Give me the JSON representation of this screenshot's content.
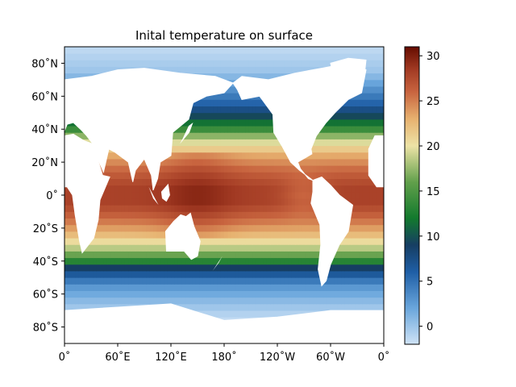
{
  "chart_data": {
    "type": "heatmap",
    "title": "Inital temperature on surface",
    "xlabel": "",
    "ylabel": "",
    "x_ticks": [
      "0˚",
      "60˚E",
      "120˚E",
      "180˚",
      "120˚W",
      "60˚W",
      "0˚"
    ],
    "y_ticks": [
      "80˚N",
      "60˚N",
      "40˚N",
      "20˚N",
      "0˚",
      "20˚S",
      "40˚S",
      "60˚S",
      "80˚S"
    ],
    "xlim": [
      0,
      360
    ],
    "ylim": [
      -90,
      90
    ],
    "colorbar": {
      "ticks": [
        0,
        5,
        10,
        15,
        20,
        25,
        30
      ],
      "range": [
        -2,
        31
      ],
      "stops": [
        {
          "v": -2,
          "color": "#cfe3f6"
        },
        {
          "v": 2,
          "color": "#6aa6dc"
        },
        {
          "v": 6,
          "color": "#1f5fa6"
        },
        {
          "v": 9,
          "color": "#163e63"
        },
        {
          "v": 12,
          "color": "#137a2d"
        },
        {
          "v": 16,
          "color": "#62a04b"
        },
        {
          "v": 20,
          "color": "#ede3a6"
        },
        {
          "v": 23,
          "color": "#e7b16f"
        },
        {
          "v": 26,
          "color": "#c8643f"
        },
        {
          "v": 28.5,
          "color": "#a23a23"
        },
        {
          "v": 31,
          "color": "#650c00"
        }
      ]
    },
    "surface_temperature_profile": {
      "lat": [
        -90,
        -75,
        -65,
        -55,
        -45,
        -40,
        -35,
        -25,
        -15,
        -5,
        5,
        15,
        25,
        35,
        40,
        45,
        55,
        65,
        75,
        90
      ],
      "temp": [
        -1.5,
        -1.5,
        0.5,
        3,
        8,
        13,
        17,
        22,
        25.5,
        28,
        28,
        26,
        23,
        18,
        14,
        11,
        6,
        3,
        0,
        -1.5
      ]
    },
    "land_mask_color": "#ffffff"
  }
}
